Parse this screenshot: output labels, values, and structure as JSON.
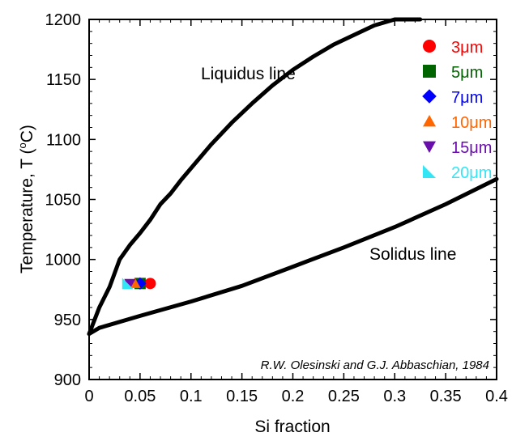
{
  "chart_data": {
    "type": "scatter",
    "xlabel": "Si fraction",
    "ylabel_main": "Temperature, T (",
    "ylabel_sup": "o",
    "ylabel_end": "C)",
    "xlim": [
      0,
      0.4
    ],
    "ylim": [
      900,
      1200
    ],
    "xticks": [
      0,
      0.05,
      0.1,
      0.15,
      0.2,
      0.25,
      0.3,
      0.35,
      0.4
    ],
    "xtick_labels": [
      "0",
      "0.05",
      "0.1",
      "0.15",
      "0.2",
      "0.25",
      "0.3",
      "0.35",
      "0.4"
    ],
    "yticks": [
      900,
      950,
      1000,
      1050,
      1100,
      1150,
      1200
    ],
    "ytick_labels": [
      "900",
      "950",
      "1000",
      "1050",
      "1100",
      "1150",
      "1200"
    ],
    "grid": false,
    "legend_position": "top-right",
    "annotations": {
      "liquidus": "Liquidus line",
      "solidus": "Solidus line",
      "credit": "R.W. Olesinski and G.J. Abbaschian, 1984"
    },
    "lines": [
      {
        "name": "Liquidus line",
        "color": "#000000",
        "points": [
          [
            0,
            938
          ],
          [
            0.01,
            960
          ],
          [
            0.02,
            977
          ],
          [
            0.03,
            1000
          ],
          [
            0.04,
            1012
          ],
          [
            0.05,
            1022
          ],
          [
            0.06,
            1033
          ],
          [
            0.07,
            1046
          ],
          [
            0.08,
            1055
          ],
          [
            0.09,
            1066
          ],
          [
            0.1,
            1076
          ],
          [
            0.12,
            1096
          ],
          [
            0.14,
            1114
          ],
          [
            0.16,
            1130
          ],
          [
            0.18,
            1145
          ],
          [
            0.2,
            1158
          ],
          [
            0.22,
            1169
          ],
          [
            0.24,
            1179
          ],
          [
            0.26,
            1187
          ],
          [
            0.28,
            1195
          ],
          [
            0.3,
            1200
          ],
          [
            0.325,
            1200
          ]
        ]
      },
      {
        "name": "Solidus line",
        "color": "#000000",
        "points": [
          [
            0,
            938
          ],
          [
            0.01,
            943
          ],
          [
            0.05,
            953
          ],
          [
            0.1,
            965
          ],
          [
            0.15,
            978
          ],
          [
            0.2,
            994
          ],
          [
            0.25,
            1010
          ],
          [
            0.3,
            1027
          ],
          [
            0.35,
            1046
          ],
          [
            0.4,
            1067
          ]
        ]
      }
    ],
    "series": [
      {
        "name": "3μm",
        "color": "#ff0000",
        "marker": "circle",
        "x": 0.06,
        "y": 980
      },
      {
        "name": "5μm",
        "color": "#006400",
        "marker": "square",
        "x": 0.05,
        "y": 980
      },
      {
        "name": "7μm",
        "color": "#0000ff",
        "marker": "diamond",
        "x": 0.05,
        "y": 980
      },
      {
        "name": "10μm",
        "color": "#ff6600",
        "marker": "triangle-up",
        "x": 0.045,
        "y": 980
      },
      {
        "name": "15μm",
        "color": "#6a0dad",
        "marker": "triangle-down",
        "x": 0.04,
        "y": 980
      },
      {
        "name": "20μm",
        "color": "#33e6f5",
        "marker": "right-triangle",
        "x": 0.038,
        "y": 980
      }
    ]
  }
}
